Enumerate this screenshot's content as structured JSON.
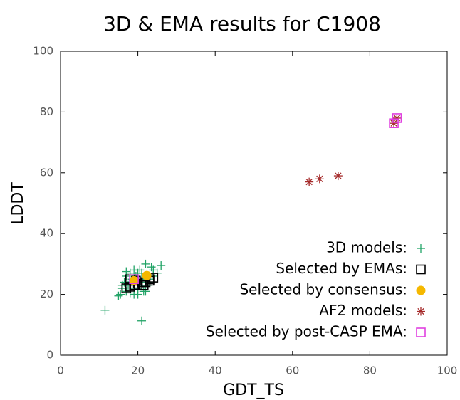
{
  "chart_data": {
    "type": "scatter",
    "title": "3D & EMA results for C1908",
    "x_label": "GDT_TS",
    "y_label": "LDDT",
    "xlim": [
      0,
      100
    ],
    "ylim": [
      0,
      100
    ],
    "xticks": [
      0,
      20,
      40,
      60,
      80,
      100
    ],
    "yticks": [
      0,
      20,
      40,
      60,
      80,
      100
    ],
    "legend": "lower right",
    "series": [
      {
        "name": "3D models:",
        "color": "#21a366",
        "marker": "+",
        "x": [
          11.5,
          21,
          16,
          17,
          17.5,
          18,
          18.5,
          19,
          19.5,
          20,
          20.5,
          21,
          21.5,
          22,
          22.5,
          23,
          23.5,
          24,
          25,
          26,
          15.5,
          16.5,
          17,
          18,
          19,
          20,
          21,
          22,
          23,
          24,
          15,
          17,
          18,
          20,
          22,
          24,
          16,
          19,
          21,
          23
        ],
        "y": [
          14.8,
          11.3,
          22,
          21,
          23,
          27,
          25,
          20,
          26,
          22,
          28,
          24,
          21,
          30,
          23,
          26,
          29,
          27,
          27,
          29.5,
          20,
          24,
          26,
          20.5,
          22,
          27,
          23,
          21,
          24,
          28,
          19.5,
          27.5,
          24,
          20,
          25,
          26,
          23,
          28,
          27,
          25
        ]
      },
      {
        "name": "Selected by EMAs:",
        "color": "#000000",
        "marker": "square",
        "x": [
          17,
          18,
          19,
          20,
          21,
          22,
          23,
          24,
          18,
          19.5,
          21.5,
          23
        ],
        "y": [
          22,
          22.5,
          23,
          23.5,
          24,
          24,
          25,
          25.5,
          25,
          24.5,
          23,
          24.5
        ]
      },
      {
        "name": "Selected by consensus:",
        "color": "#f5b800",
        "marker": "circle",
        "x": [
          19,
          22.3
        ],
        "y": [
          24.5,
          26.2
        ]
      },
      {
        "name": "AF2 models:",
        "color": "#a52a2a",
        "marker": "*",
        "x": [
          64.3,
          67,
          71.8,
          86.2,
          87
        ],
        "y": [
          57,
          58,
          59,
          76.3,
          78
        ]
      },
      {
        "name": "Selected by post-CASP EMA:",
        "color": "#e040e0",
        "marker": "square",
        "x": [
          19,
          86.2,
          87
        ],
        "y": [
          25,
          76.3,
          78
        ]
      }
    ]
  }
}
